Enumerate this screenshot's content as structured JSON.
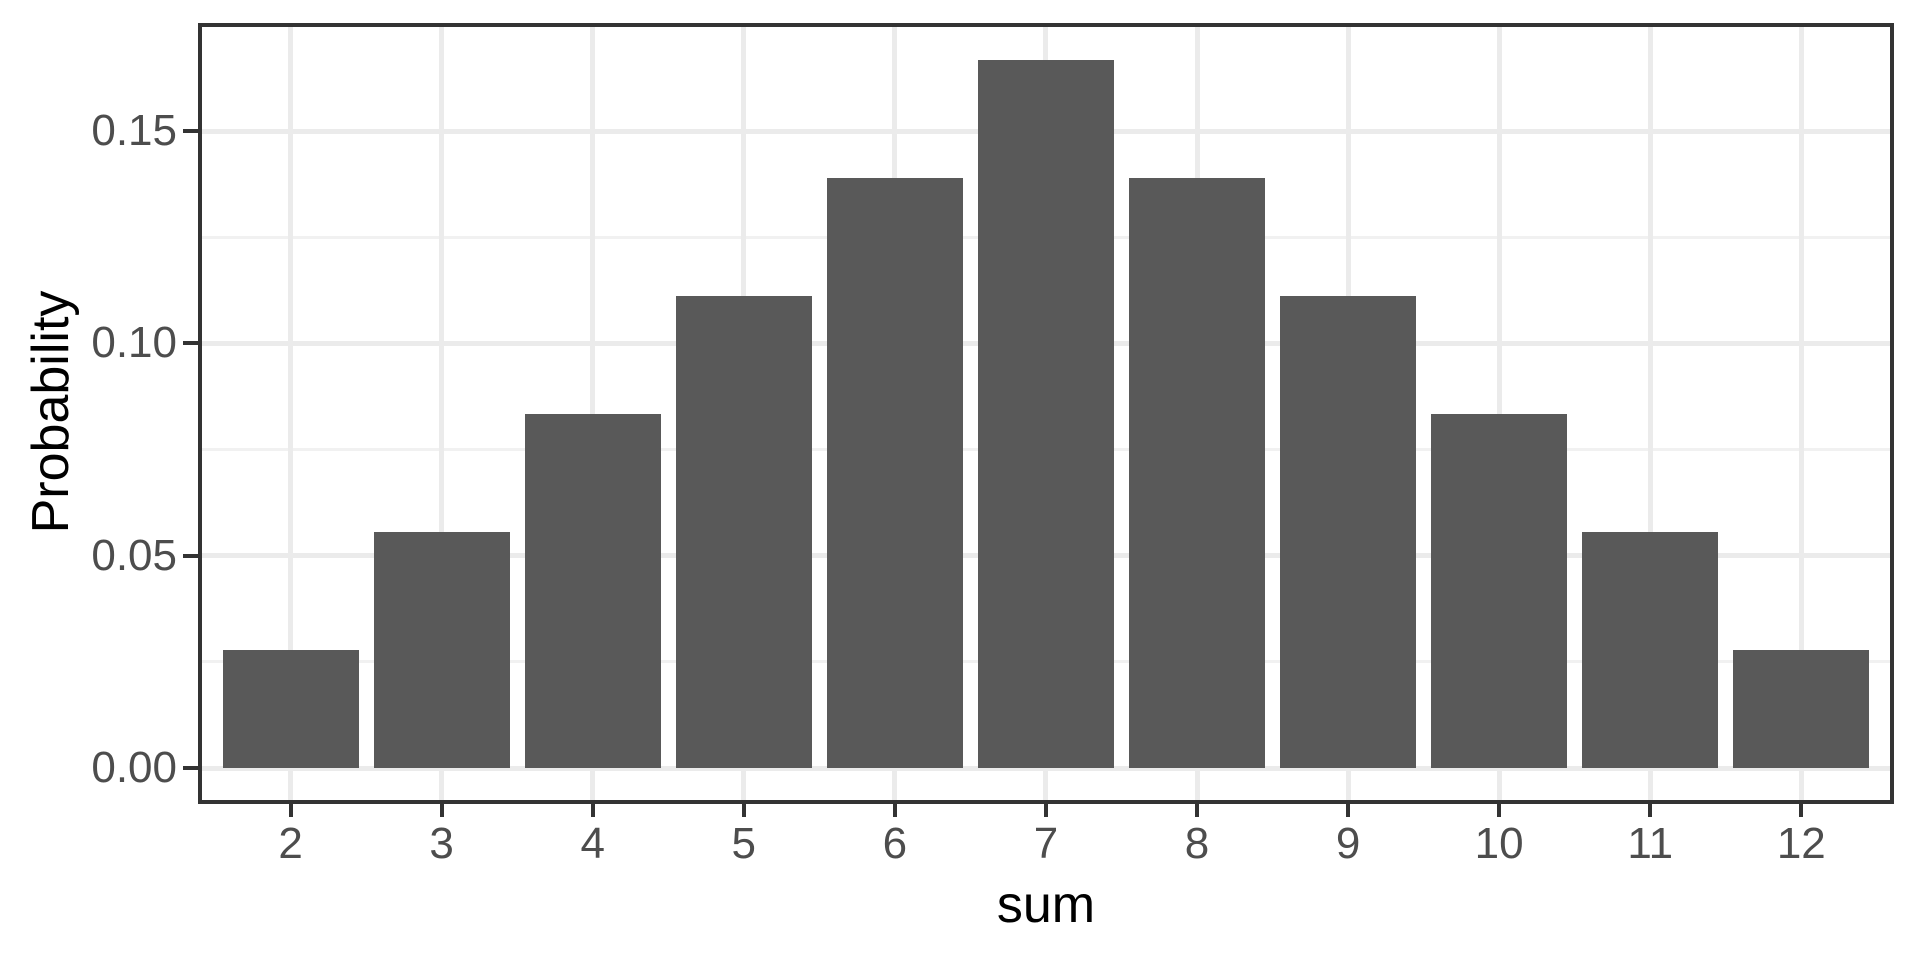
{
  "chart_data": {
    "type": "bar",
    "title": "",
    "xlabel": "sum",
    "ylabel": "Probability",
    "categories": [
      "2",
      "3",
      "4",
      "5",
      "6",
      "7",
      "8",
      "9",
      "10",
      "11",
      "12"
    ],
    "values": [
      0.02778,
      0.05556,
      0.08333,
      0.11111,
      0.13889,
      0.16667,
      0.13889,
      0.11111,
      0.08333,
      0.05556,
      0.02778
    ],
    "y_ticks": [
      {
        "value": 0.0,
        "label": "0.00"
      },
      {
        "value": 0.05,
        "label": "0.05"
      },
      {
        "value": 0.1,
        "label": "0.10"
      },
      {
        "value": 0.15,
        "label": "0.15"
      }
    ],
    "y_minor_ticks": [
      0.025,
      0.075,
      0.125
    ],
    "ylim": [
      0,
      0.175
    ],
    "grid": true,
    "legend": "none",
    "colors": {
      "bar": "#595959",
      "grid_major": "#EBEBEB",
      "grid_minor": "#F1F1F1",
      "panel_border": "#333333",
      "tick_mark": "#333333",
      "tick_label": "#4D4D4D",
      "axis_title": "#000000",
      "background": "#FFFFFF"
    }
  }
}
